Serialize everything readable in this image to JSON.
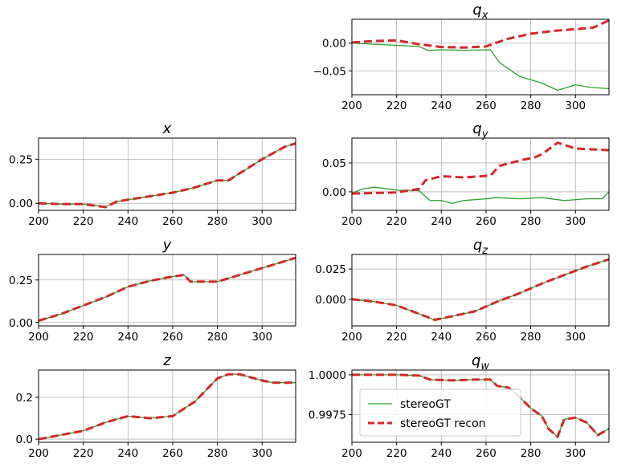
{
  "chart_data": [
    {
      "id": "qx",
      "type": "line",
      "title": "q",
      "title_sub": "x",
      "xlim": [
        200,
        315
      ],
      "ylim": [
        -0.093,
        0.043
      ],
      "xticks": [
        200,
        220,
        240,
        260,
        280,
        300
      ],
      "yticks": [
        0.0,
        -0.05
      ],
      "ytick_labels": [
        "0.00",
        "−0.05"
      ],
      "grid": true,
      "series": [
        {
          "name": "stereoGT",
          "color": "#2ca02c",
          "style": "solid",
          "points": [
            [
              200,
              0.0
            ],
            [
              210,
              -0.002
            ],
            [
              220,
              -0.004
            ],
            [
              230,
              -0.006
            ],
            [
              234,
              -0.013
            ],
            [
              240,
              -0.012
            ],
            [
              250,
              -0.013
            ],
            [
              262,
              -0.012
            ],
            [
              266,
              -0.035
            ],
            [
              275,
              -0.06
            ],
            [
              285,
              -0.072
            ],
            [
              292,
              -0.085
            ],
            [
              300,
              -0.075
            ],
            [
              307,
              -0.08
            ],
            [
              315,
              -0.082
            ]
          ]
        },
        {
          "name": "stereoGT recon",
          "color": "#d62728",
          "style": "dashed",
          "points": [
            [
              200,
              0.001
            ],
            [
              210,
              0.004
            ],
            [
              220,
              0.005
            ],
            [
              230,
              -0.002
            ],
            [
              240,
              -0.007
            ],
            [
              250,
              -0.008
            ],
            [
              260,
              -0.006
            ],
            [
              264,
              0.0
            ],
            [
              270,
              0.008
            ],
            [
              280,
              0.017
            ],
            [
              290,
              0.022
            ],
            [
              300,
              0.025
            ],
            [
              308,
              0.028
            ],
            [
              315,
              0.041
            ]
          ]
        }
      ]
    },
    {
      "id": "x",
      "type": "line",
      "title": "x",
      "title_sub": "",
      "xlim": [
        200,
        315
      ],
      "ylim": [
        -0.04,
        0.37
      ],
      "xticks": [
        200,
        220,
        240,
        260,
        280,
        300
      ],
      "yticks": [
        0.25,
        0.0
      ],
      "ytick_labels": [
        "0.25",
        "0.00"
      ],
      "grid": true,
      "series": [
        {
          "name": "stereoGT",
          "color": "#2ca02c",
          "style": "solid",
          "points": [
            [
              200,
              0.0
            ],
            [
              210,
              -0.005
            ],
            [
              220,
              -0.005
            ],
            [
              230,
              -0.02
            ],
            [
              235,
              0.01
            ],
            [
              240,
              0.02
            ],
            [
              250,
              0.04
            ],
            [
              260,
              0.06
            ],
            [
              270,
              0.09
            ],
            [
              280,
              0.13
            ],
            [
              285,
              0.13
            ],
            [
              290,
              0.17
            ],
            [
              300,
              0.25
            ],
            [
              310,
              0.32
            ],
            [
              315,
              0.34
            ]
          ]
        },
        {
          "name": "stereoGT recon",
          "color": "#d62728",
          "style": "dashed",
          "points": [
            [
              200,
              0.0
            ],
            [
              210,
              -0.005
            ],
            [
              220,
              -0.005
            ],
            [
              230,
              -0.022
            ],
            [
              235,
              0.01
            ],
            [
              240,
              0.02
            ],
            [
              250,
              0.04
            ],
            [
              260,
              0.06
            ],
            [
              270,
              0.09
            ],
            [
              280,
              0.13
            ],
            [
              285,
              0.13
            ],
            [
              290,
              0.17
            ],
            [
              300,
              0.25
            ],
            [
              310,
              0.32
            ],
            [
              315,
              0.34
            ]
          ]
        }
      ]
    },
    {
      "id": "qy",
      "type": "line",
      "title": "q",
      "title_sub": "y",
      "xlim": [
        200,
        315
      ],
      "ylim": [
        -0.032,
        0.093
      ],
      "xticks": [
        200,
        220,
        240,
        260,
        280,
        300
      ],
      "yticks": [
        0.05,
        0.0
      ],
      "ytick_labels": [
        "0.05",
        "0.00"
      ],
      "grid": true,
      "series": [
        {
          "name": "stereoGT",
          "color": "#2ca02c",
          "style": "solid",
          "points": [
            [
              200,
              -0.002
            ],
            [
              205,
              0.005
            ],
            [
              210,
              0.008
            ],
            [
              220,
              0.003
            ],
            [
              230,
              0.002
            ],
            [
              235,
              -0.015
            ],
            [
              240,
              -0.015
            ],
            [
              245,
              -0.02
            ],
            [
              250,
              -0.015
            ],
            [
              260,
              -0.012
            ],
            [
              265,
              -0.01
            ],
            [
              275,
              -0.012
            ],
            [
              285,
              -0.01
            ],
            [
              295,
              -0.015
            ],
            [
              305,
              -0.012
            ],
            [
              312,
              -0.012
            ],
            [
              315,
              0.0
            ]
          ]
        },
        {
          "name": "stereoGT recon",
          "color": "#d62728",
          "style": "dashed",
          "points": [
            [
              200,
              -0.003
            ],
            [
              210,
              -0.002
            ],
            [
              220,
              -0.001
            ],
            [
              230,
              0.005
            ],
            [
              233,
              0.02
            ],
            [
              240,
              0.027
            ],
            [
              250,
              0.025
            ],
            [
              262,
              0.028
            ],
            [
              266,
              0.045
            ],
            [
              276,
              0.055
            ],
            [
              282,
              0.06
            ],
            [
              285,
              0.065
            ],
            [
              292,
              0.085
            ],
            [
              300,
              0.075
            ],
            [
              315,
              0.072
            ]
          ]
        }
      ]
    },
    {
      "id": "y",
      "type": "line",
      "title": "y",
      "title_sub": "",
      "xlim": [
        200,
        315
      ],
      "ylim": [
        -0.02,
        0.4
      ],
      "xticks": [
        200,
        220,
        240,
        260,
        280,
        300
      ],
      "yticks": [
        0.25,
        0.0
      ],
      "ytick_labels": [
        "0.25",
        "0.00"
      ],
      "grid": true,
      "series": [
        {
          "name": "stereoGT",
          "color": "#2ca02c",
          "style": "solid",
          "points": [
            [
              200,
              0.01
            ],
            [
              210,
              0.05
            ],
            [
              220,
              0.1
            ],
            [
              230,
              0.15
            ],
            [
              240,
              0.21
            ],
            [
              250,
              0.245
            ],
            [
              260,
              0.27
            ],
            [
              265,
              0.28
            ],
            [
              268,
              0.24
            ],
            [
              280,
              0.24
            ],
            [
              290,
              0.28
            ],
            [
              300,
              0.32
            ],
            [
              310,
              0.36
            ],
            [
              315,
              0.38
            ]
          ]
        },
        {
          "name": "stereoGT recon",
          "color": "#d62728",
          "style": "dashed",
          "points": [
            [
              200,
              0.01
            ],
            [
              210,
              0.05
            ],
            [
              220,
              0.1
            ],
            [
              230,
              0.15
            ],
            [
              240,
              0.21
            ],
            [
              250,
              0.245
            ],
            [
              260,
              0.27
            ],
            [
              265,
              0.28
            ],
            [
              268,
              0.24
            ],
            [
              280,
              0.24
            ],
            [
              290,
              0.28
            ],
            [
              300,
              0.32
            ],
            [
              310,
              0.36
            ],
            [
              315,
              0.38
            ]
          ]
        }
      ]
    },
    {
      "id": "qz",
      "type": "line",
      "title": "q",
      "title_sub": "z",
      "xlim": [
        200,
        315
      ],
      "ylim": [
        -0.022,
        0.037
      ],
      "xticks": [
        200,
        220,
        240,
        260,
        280,
        300
      ],
      "yticks": [
        0.025,
        0.0
      ],
      "ytick_labels": [
        "0.025",
        "0.000"
      ],
      "grid": true,
      "series": [
        {
          "name": "stereoGT",
          "color": "#2ca02c",
          "style": "solid",
          "points": [
            [
              200,
              0.0
            ],
            [
              210,
              -0.002
            ],
            [
              220,
              -0.005
            ],
            [
              230,
              -0.012
            ],
            [
              237,
              -0.017
            ],
            [
              245,
              -0.014
            ],
            [
              255,
              -0.01
            ],
            [
              265,
              -0.002
            ],
            [
              275,
              0.005
            ],
            [
              285,
              0.013
            ],
            [
              295,
              0.02
            ],
            [
              305,
              0.027
            ],
            [
              315,
              0.033
            ]
          ]
        },
        {
          "name": "stereoGT recon",
          "color": "#d62728",
          "style": "dashed",
          "points": [
            [
              200,
              0.0
            ],
            [
              210,
              -0.002
            ],
            [
              220,
              -0.005
            ],
            [
              230,
              -0.012
            ],
            [
              237,
              -0.017
            ],
            [
              245,
              -0.014
            ],
            [
              255,
              -0.01
            ],
            [
              265,
              -0.002
            ],
            [
              275,
              0.005
            ],
            [
              285,
              0.013
            ],
            [
              295,
              0.02
            ],
            [
              305,
              0.027
            ],
            [
              315,
              0.033
            ]
          ]
        }
      ]
    },
    {
      "id": "z",
      "type": "line",
      "title": "z",
      "title_sub": "",
      "xlim": [
        200,
        315
      ],
      "ylim": [
        -0.015,
        0.33
      ],
      "xticks": [
        200,
        220,
        240,
        260,
        280,
        300
      ],
      "yticks": [
        0.2,
        0.0
      ],
      "ytick_labels": [
        "0.2",
        "0.0"
      ],
      "grid": true,
      "series": [
        {
          "name": "stereoGT",
          "color": "#2ca02c",
          "style": "solid",
          "points": [
            [
              200,
              0.0
            ],
            [
              210,
              0.02
            ],
            [
              220,
              0.04
            ],
            [
              230,
              0.08
            ],
            [
              240,
              0.11
            ],
            [
              250,
              0.1
            ],
            [
              260,
              0.11
            ],
            [
              270,
              0.18
            ],
            [
              280,
              0.29
            ],
            [
              285,
              0.31
            ],
            [
              290,
              0.31
            ],
            [
              300,
              0.28
            ],
            [
              305,
              0.27
            ],
            [
              315,
              0.27
            ]
          ]
        },
        {
          "name": "stereoGT recon",
          "color": "#d62728",
          "style": "dashed",
          "points": [
            [
              200,
              0.0
            ],
            [
              210,
              0.02
            ],
            [
              220,
              0.04
            ],
            [
              230,
              0.08
            ],
            [
              240,
              0.11
            ],
            [
              250,
              0.1
            ],
            [
              260,
              0.11
            ],
            [
              270,
              0.18
            ],
            [
              280,
              0.29
            ],
            [
              285,
              0.31
            ],
            [
              290,
              0.31
            ],
            [
              300,
              0.28
            ],
            [
              305,
              0.27
            ],
            [
              315,
              0.27
            ]
          ]
        }
      ]
    },
    {
      "id": "qw",
      "type": "line",
      "title": "q",
      "title_sub": "w",
      "xlim": [
        200,
        315
      ],
      "ylim": [
        0.99575,
        1.0003
      ],
      "xticks": [
        200,
        220,
        240,
        260,
        280,
        300
      ],
      "yticks": [
        1.0,
        0.9975
      ],
      "ytick_labels": [
        "1.0000",
        "0.9975"
      ],
      "grid": true,
      "legend": {
        "position": "lower-left",
        "entries": [
          "stereoGT",
          "stereoGT recon"
        ]
      },
      "series": [
        {
          "name": "stereoGT",
          "color": "#2ca02c",
          "style": "solid",
          "points": [
            [
              200,
              1.0
            ],
            [
              220,
              1.0
            ],
            [
              230,
              0.99995
            ],
            [
              235,
              0.9997
            ],
            [
              245,
              0.99965
            ],
            [
              255,
              0.9997
            ],
            [
              262,
              0.9997
            ],
            [
              265,
              0.9993
            ],
            [
              270,
              0.9992
            ],
            [
              275,
              0.9986
            ],
            [
              280,
              0.9979
            ],
            [
              285,
              0.9974
            ],
            [
              288,
              0.9966
            ],
            [
              292,
              0.9961
            ],
            [
              295,
              0.9972
            ],
            [
              300,
              0.9973
            ],
            [
              305,
              0.997
            ],
            [
              310,
              0.9962
            ],
            [
              315,
              0.9966
            ]
          ]
        },
        {
          "name": "stereoGT recon",
          "color": "#d62728",
          "style": "dashed",
          "points": [
            [
              200,
              1.0
            ],
            [
              220,
              1.0
            ],
            [
              230,
              0.99995
            ],
            [
              235,
              0.9997
            ],
            [
              245,
              0.99965
            ],
            [
              255,
              0.9997
            ],
            [
              262,
              0.9997
            ],
            [
              265,
              0.9993
            ],
            [
              270,
              0.9992
            ],
            [
              275,
              0.9986
            ],
            [
              280,
              0.9979
            ],
            [
              285,
              0.9974
            ],
            [
              288,
              0.9966
            ],
            [
              292,
              0.9961
            ],
            [
              295,
              0.9972
            ],
            [
              300,
              0.9973
            ],
            [
              305,
              0.997
            ],
            [
              310,
              0.9962
            ],
            [
              315,
              0.9966
            ]
          ]
        }
      ]
    }
  ]
}
